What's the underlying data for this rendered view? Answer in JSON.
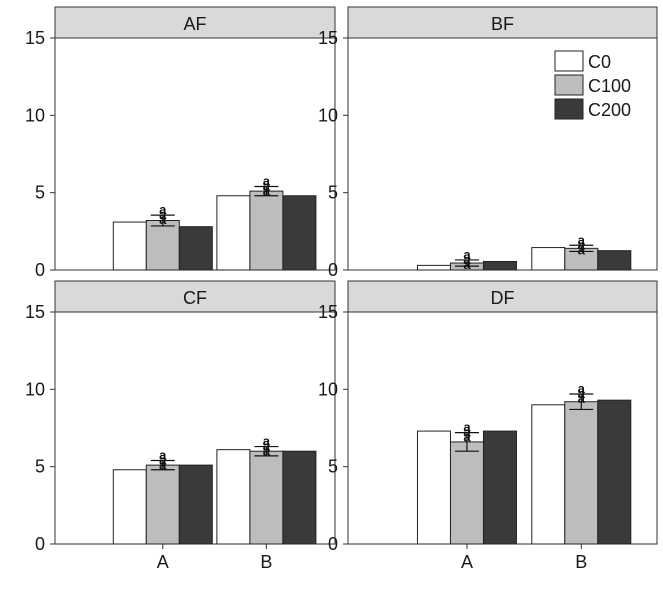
{
  "chart_data": {
    "type": "bar",
    "categories": [
      "A",
      "B"
    ],
    "ylim": [
      0,
      15
    ],
    "yticks": [
      0,
      5,
      10,
      15
    ],
    "grid": false,
    "legend_position": "top-right",
    "series": [
      {
        "name": "C0",
        "color": "#ffffff"
      },
      {
        "name": "C100",
        "color": "#bdbdbd"
      },
      {
        "name": "C200",
        "color": "#3a3a3a"
      }
    ],
    "panels": [
      {
        "title": "AF",
        "values": {
          "A": [
            3.1,
            3.2,
            2.8
          ],
          "B": [
            4.8,
            5.1,
            4.8
          ]
        },
        "errors": {
          "A": 0.35,
          "B": 0.3
        },
        "annotations": {
          "A": "a\na\na",
          "B": "a\na\na"
        }
      },
      {
        "title": "BF",
        "values": {
          "A": [
            0.3,
            0.45,
            0.55
          ],
          "B": [
            1.45,
            1.4,
            1.25
          ]
        },
        "errors": {
          "A": 0.2,
          "B": 0.2
        },
        "annotations": {
          "A": "a\na\na",
          "B": "a\na\na"
        }
      },
      {
        "title": "CF",
        "values": {
          "A": [
            4.8,
            5.1,
            5.1
          ],
          "B": [
            6.1,
            6.0,
            6.0
          ]
        },
        "errors": {
          "A": 0.3,
          "B": 0.3
        },
        "annotations": {
          "A": "a\na\na",
          "B": "a\na\na"
        }
      },
      {
        "title": "DF",
        "values": {
          "A": [
            7.3,
            6.6,
            7.3
          ],
          "B": [
            9.0,
            9.2,
            9.3
          ]
        },
        "errors": {
          "A": 0.6,
          "B": 0.5
        },
        "annotations": {
          "A": "a\na\na",
          "B": "a\na\na"
        }
      }
    ]
  }
}
